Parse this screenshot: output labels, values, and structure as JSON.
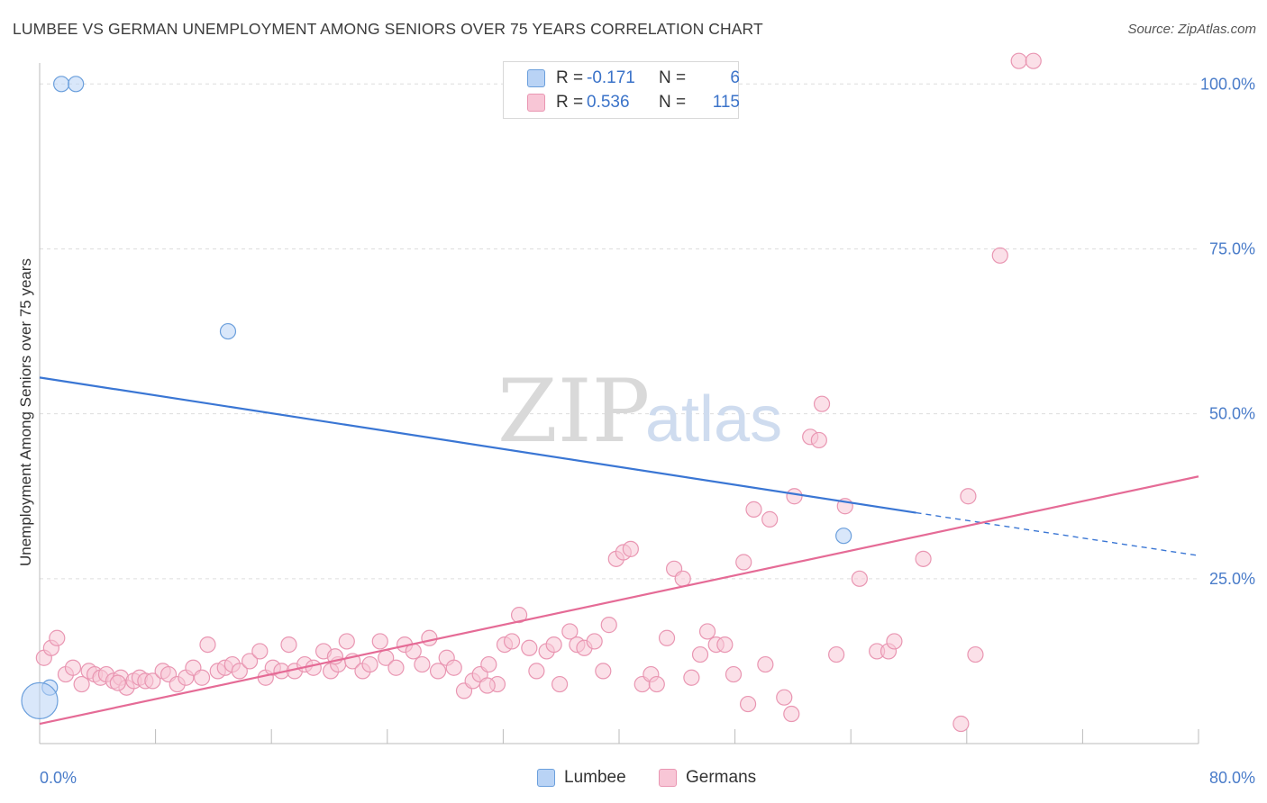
{
  "title": "LUMBEE VS GERMAN UNEMPLOYMENT AMONG SENIORS OVER 75 YEARS CORRELATION CHART",
  "source": "Source: ZipAtlas.com",
  "watermark": {
    "zip": "ZIP",
    "atlas": "atlas"
  },
  "legend": {
    "rows": [
      {
        "r_label": "R =",
        "r_value": "-0.171",
        "n_label": "N =",
        "n_value": "6"
      },
      {
        "r_label": "R =",
        "r_value": "0.536",
        "n_label": "N =",
        "n_value": "115"
      }
    ]
  },
  "bottom_legend": {
    "series1": "Lumbee",
    "series2": "Germans"
  },
  "colors": {
    "lumbee_fill": "#b9d3f5",
    "lumbee_stroke": "#6b9fdc",
    "lumbee_line": "#3a76d4",
    "germans_fill": "#f8c6d6",
    "germans_stroke": "#e996b2",
    "germans_line": "#e56b96",
    "tick_text": "#4a7cc9",
    "grid": "#dddddd"
  },
  "chart_data": {
    "type": "scatter",
    "title": "LUMBEE VS GERMAN UNEMPLOYMENT AMONG SENIORS OVER 75 YEARS CORRELATION CHART",
    "xlabel": "",
    "ylabel": "Unemployment Among Seniors over 75 years",
    "xlim": [
      0,
      80
    ],
    "ylim": [
      0,
      104
    ],
    "x_tick_labels": [
      {
        "value": 0,
        "label": "0.0%"
      },
      {
        "value": 80,
        "label": "80.0%"
      }
    ],
    "y_tick_labels": [
      {
        "value": 25,
        "label": "25.0%"
      },
      {
        "value": 50,
        "label": "50.0%"
      },
      {
        "value": 75,
        "label": "75.0%"
      },
      {
        "value": 100,
        "label": "100.0%"
      }
    ],
    "x_minor_ticks": [
      8,
      16,
      24,
      32,
      40,
      48,
      56,
      64,
      72,
      80
    ],
    "grid": true,
    "legend_position": "top-center",
    "series": [
      {
        "name": "Lumbee",
        "points": [
          [
            1.5,
            100
          ],
          [
            2.5,
            100
          ],
          [
            13.0,
            62.5
          ],
          [
            55.5,
            31.5
          ],
          [
            0.7,
            8.5
          ],
          [
            0.0,
            6.5
          ]
        ],
        "trend": {
          "x1": 0,
          "y1": 55.5,
          "x2": 60.5,
          "y2": 35.0,
          "dash_to_x": 80,
          "dash_to_y": 28.5
        }
      },
      {
        "name": "Germans",
        "points": [
          [
            0.3,
            13
          ],
          [
            0.8,
            14.5
          ],
          [
            1.2,
            16
          ],
          [
            1.8,
            10.5
          ],
          [
            2.3,
            11.5
          ],
          [
            2.9,
            9
          ],
          [
            3.4,
            11
          ],
          [
            3.8,
            10.5
          ],
          [
            4.2,
            10
          ],
          [
            4.6,
            10.5
          ],
          [
            5.1,
            9.5
          ],
          [
            5.6,
            10
          ],
          [
            6.0,
            8.5
          ],
          [
            6.5,
            9.5
          ],
          [
            6.9,
            10
          ],
          [
            7.3,
            9.5
          ],
          [
            7.8,
            9.5
          ],
          [
            8.5,
            11
          ],
          [
            8.9,
            10.5
          ],
          [
            9.5,
            9
          ],
          [
            10.1,
            10
          ],
          [
            10.6,
            11.5
          ],
          [
            11.2,
            10
          ],
          [
            11.6,
            15
          ],
          [
            12.3,
            11
          ],
          [
            12.8,
            11.5
          ],
          [
            13.3,
            12
          ],
          [
            13.8,
            11
          ],
          [
            14.5,
            12.5
          ],
          [
            15.2,
            14
          ],
          [
            15.6,
            10
          ],
          [
            16.1,
            11.5
          ],
          [
            16.7,
            11
          ],
          [
            17.2,
            15
          ],
          [
            17.6,
            11
          ],
          [
            18.3,
            12
          ],
          [
            18.9,
            11.5
          ],
          [
            19.6,
            14
          ],
          [
            20.1,
            11
          ],
          [
            20.6,
            12
          ],
          [
            21.2,
            15.5
          ],
          [
            21.6,
            12.5
          ],
          [
            22.3,
            11
          ],
          [
            22.8,
            12
          ],
          [
            23.5,
            15.5
          ],
          [
            23.9,
            13
          ],
          [
            24.6,
            11.5
          ],
          [
            25.2,
            15
          ],
          [
            25.8,
            14
          ],
          [
            26.4,
            12
          ],
          [
            26.9,
            16
          ],
          [
            27.5,
            11
          ],
          [
            28.1,
            13
          ],
          [
            28.6,
            11.5
          ],
          [
            29.3,
            8
          ],
          [
            29.9,
            9.5
          ],
          [
            30.4,
            10.5
          ],
          [
            31.0,
            12
          ],
          [
            31.6,
            9
          ],
          [
            32.1,
            15
          ],
          [
            32.6,
            15.5
          ],
          [
            33.1,
            19.5
          ],
          [
            33.8,
            14.5
          ],
          [
            34.3,
            11
          ],
          [
            35.0,
            14
          ],
          [
            35.5,
            15
          ],
          [
            35.9,
            9
          ],
          [
            36.6,
            17
          ],
          [
            37.1,
            15
          ],
          [
            37.6,
            14.5
          ],
          [
            38.3,
            15.5
          ],
          [
            38.9,
            11
          ],
          [
            39.3,
            18
          ],
          [
            39.8,
            28
          ],
          [
            40.3,
            29
          ],
          [
            40.8,
            29.5
          ],
          [
            41.6,
            9
          ],
          [
            42.2,
            10.5
          ],
          [
            42.6,
            9
          ],
          [
            43.3,
            16
          ],
          [
            43.8,
            26.5
          ],
          [
            44.4,
            25
          ],
          [
            45.0,
            10
          ],
          [
            45.6,
            13.5
          ],
          [
            46.1,
            17
          ],
          [
            46.7,
            15
          ],
          [
            47.3,
            15
          ],
          [
            47.9,
            10.5
          ],
          [
            48.6,
            27.5
          ],
          [
            48.9,
            6
          ],
          [
            49.3,
            35.5
          ],
          [
            50.1,
            12
          ],
          [
            50.4,
            34
          ],
          [
            51.4,
            7
          ],
          [
            51.9,
            4.5
          ],
          [
            52.1,
            37.5
          ],
          [
            53.2,
            46.5
          ],
          [
            53.8,
            46
          ],
          [
            54.0,
            51.5
          ],
          [
            55.0,
            13.5
          ],
          [
            55.6,
            36
          ],
          [
            56.6,
            25
          ],
          [
            57.8,
            14
          ],
          [
            58.6,
            14
          ],
          [
            59.0,
            15.5
          ],
          [
            61.0,
            28
          ],
          [
            63.6,
            3
          ],
          [
            64.1,
            37.5
          ],
          [
            64.6,
            13.5
          ],
          [
            66.3,
            74
          ],
          [
            67.6,
            103.5
          ],
          [
            68.6,
            103.5
          ],
          [
            5.4,
            9.2
          ],
          [
            30.9,
            8.8
          ],
          [
            20.4,
            13.2
          ]
        ],
        "trend": {
          "x1": 0,
          "y1": 3.0,
          "x2": 80,
          "y2": 40.5
        }
      }
    ]
  }
}
